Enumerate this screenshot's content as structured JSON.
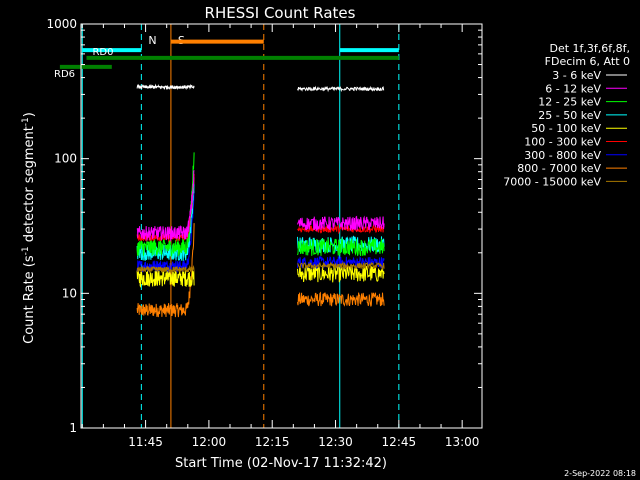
{
  "chart_data": {
    "type": "line",
    "title": "RHESSI Count Rates",
    "xlabel": "Start Time (02-Nov-17 11:32:42)",
    "ylabel_parts": {
      "main": "Count Rate (s",
      "exp1": "-1",
      "mid": " detector segment",
      "exp2": "-1",
      "end": ")"
    },
    "yscale": "log",
    "ylim": [
      1,
      1000
    ],
    "xlim_minutes": [
      0,
      95
    ],
    "y_ticks": [
      1,
      10,
      100,
      1000
    ],
    "y_tick_labels": [
      "1",
      "10",
      "100",
      "1000"
    ],
    "x_ticks_minutes": [
      15.3,
      30.3,
      45.3,
      60.3,
      75.3,
      90.3
    ],
    "x_tick_labels": [
      "11:45",
      "12:00",
      "12:15",
      "12:30",
      "12:45",
      "13:00"
    ],
    "legend_header": [
      "Det 1f,3f,6f,8f,",
      "FDecim 6, Att 0"
    ],
    "segments": [
      [
        13.3,
        26.8
      ],
      [
        51.3,
        71.8
      ]
    ],
    "series": [
      {
        "name": "3 - 6 keV",
        "color": "#ffffff",
        "levels": [
          340,
          330
        ],
        "noise": 0.03
      },
      {
        "name": "6 - 12 keV",
        "color": "#ff00ff",
        "levels": [
          28,
          33
        ],
        "noise": 0.12
      },
      {
        "name": "12 - 25 keV",
        "color": "#00ff00",
        "levels": [
          22,
          22
        ],
        "noise": 0.15
      },
      {
        "name": "25 - 50 keV",
        "color": "#00ffff",
        "levels": [
          20,
          23
        ],
        "noise": 0.14
      },
      {
        "name": "50 - 100 keV",
        "color": "#ffff00",
        "levels": [
          13,
          14
        ],
        "noise": 0.15
      },
      {
        "name": "100 - 300 keV",
        "color": "#ff0000",
        "levels": [
          26,
          30
        ],
        "noise": 0.06
      },
      {
        "name": "300 - 800 keV",
        "color": "#0000ff",
        "levels": [
          16,
          17
        ],
        "noise": 0.1
      },
      {
        "name": "800 - 7000 keV",
        "color": "#ff8000",
        "levels": [
          7.5,
          9
        ],
        "noise": 0.12
      },
      {
        "name": "7000 - 15000 keV",
        "color": "#a87800",
        "levels": [
          15,
          16
        ],
        "noise": 0.05
      }
    ],
    "flare_end_values": {
      "6 - 12 keV": 80,
      "12 - 25 keV": 120,
      "25 - 50 keV": 70,
      "100 - 300 keV": 75,
      "300 - 800 keV": 55,
      "800 - 7000 keV": 30
    },
    "vlines": [
      {
        "label": "",
        "minutes": 0.3,
        "color": "#00ffff",
        "style": "solid"
      },
      {
        "label": "N",
        "minutes": 14.3,
        "color": "#00ffff",
        "style": "dashed"
      },
      {
        "label": "S",
        "minutes": 21.3,
        "color": "#ff8000",
        "style": "solid"
      },
      {
        "label": "",
        "minutes": 43.3,
        "color": "#ff8000",
        "style": "dashed"
      },
      {
        "label": "",
        "minutes": 61.3,
        "color": "#00ffff",
        "style": "solid"
      },
      {
        "label": "",
        "minutes": 75.3,
        "color": "#00ffff",
        "style": "dashed"
      }
    ],
    "bars": [
      {
        "label": "",
        "from": 0.3,
        "to": 14.3,
        "value": 640,
        "color": "#00ffff"
      },
      {
        "label": "",
        "from": 61.3,
        "to": 75.3,
        "value": 640,
        "color": "#00ffff"
      },
      {
        "label": "",
        "from": 21.3,
        "to": 43.3,
        "value": 740,
        "color": "#ff8000"
      },
      {
        "label": "RD0",
        "from": 1.3,
        "to": 75.3,
        "value": 560,
        "color": "#008000"
      },
      {
        "label": "RD6",
        "from": -5.0,
        "to": 7.3,
        "value": 480,
        "color": "#008000"
      }
    ],
    "footer": "2-Sep-2022 08:18"
  }
}
